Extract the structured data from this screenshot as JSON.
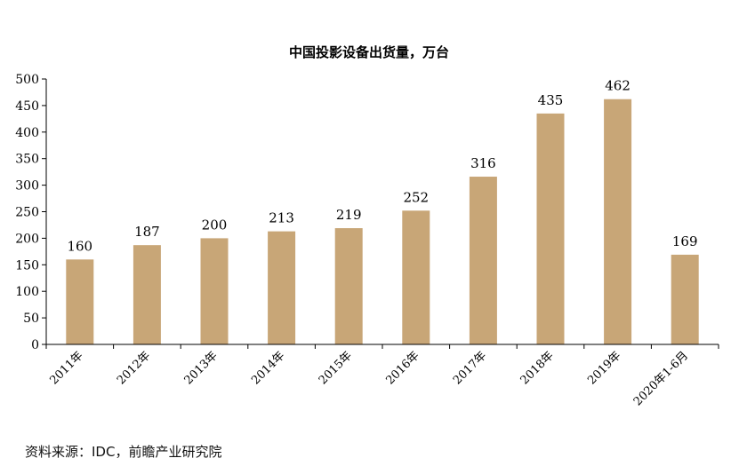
{
  "chart_data": {
    "type": "bar",
    "title": "中国投影设备出货量，万台",
    "categories": [
      "2011年",
      "2012年",
      "2013年",
      "2014年",
      "2015年",
      "2016年",
      "2017年",
      "2018年",
      "2019年",
      "2020年1-6月"
    ],
    "values": [
      160,
      187,
      200,
      213,
      219,
      252,
      316,
      435,
      462,
      169
    ],
    "ylim": [
      0,
      500
    ],
    "yticks": [
      0,
      50,
      100,
      150,
      200,
      250,
      300,
      350,
      400,
      450,
      500
    ],
    "grid": false,
    "bar_color": "#c8a677"
  },
  "source": "资料来源：IDC，前瞻产业研究院"
}
